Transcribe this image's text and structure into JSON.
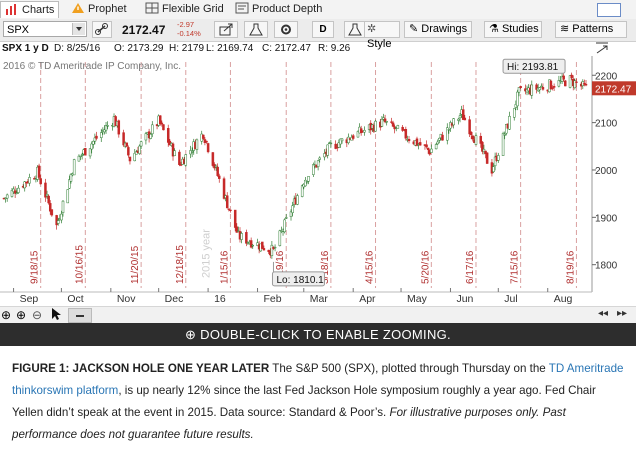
{
  "tabs": [
    {
      "label": "Charts",
      "active": true,
      "icon": "bar-chart-icon"
    },
    {
      "label": "Prophet",
      "active": false,
      "icon": "warning-triangle-icon"
    },
    {
      "label": "Flexible Grid",
      "active": false,
      "icon": "grid-icon"
    },
    {
      "label": "Product Depth",
      "active": false,
      "icon": "depth-icon"
    }
  ],
  "toolbar": {
    "symbol": "SPX",
    "price": "2172.47",
    "change": "-2.97",
    "change_pct": "-0.14%",
    "period": "D",
    "style_label": "Style",
    "drawings_label": "Drawings",
    "studies_label": "Studies",
    "patterns_label": "Patterns"
  },
  "info": {
    "symbol_period": "SPX 1 y D",
    "date": "D: 8/25/16",
    "open": "O: 2173.29",
    "high": "H: 2179",
    "low": "L: 2169.74",
    "close": "C: 2172.47",
    "range": "R: 9.26"
  },
  "chart_data": {
    "type": "candlestick",
    "copyright": "2016 © TD Ameritrade IP Company, Inc.",
    "watermark": "2015 year",
    "price_badge": "2172.47",
    "hi_label": "Hi: 2193.81",
    "lo_label": "Lo: 1810.1",
    "ylim": [
      1755,
      2228
    ],
    "y_ticks": [
      1800,
      1900,
      2000,
      2100,
      2200
    ],
    "month_labels": [
      "Sep",
      "Oct",
      "Nov",
      "Dec",
      "16",
      "Feb",
      "Mar",
      "Apr",
      "May",
      "Jun",
      "Jul",
      "Aug"
    ],
    "event_dates": [
      "9/18/15",
      "10/16/15",
      "11/20/15",
      "12/18/15",
      "1/15/16",
      "2/19/16",
      "3/18/16",
      "4/15/16",
      "5/20/16",
      "6/17/16",
      "7/15/16",
      "8/19/16"
    ],
    "anchors": [
      [
        "2015-08-26",
        1940
      ],
      [
        "2015-09-16",
        1995
      ],
      [
        "2015-09-28",
        1882
      ],
      [
        "2015-10-09",
        2015
      ],
      [
        "2015-11-03",
        2109
      ],
      [
        "2015-11-13",
        2023
      ],
      [
        "2015-12-01",
        2103
      ],
      [
        "2015-12-14",
        2012
      ],
      [
        "2015-12-29",
        2078
      ],
      [
        "2016-01-20",
        1860
      ],
      [
        "2016-02-11",
        1829
      ],
      [
        "2016-03-01",
        1978
      ],
      [
        "2016-03-18",
        2050
      ],
      [
        "2016-04-01",
        2073
      ],
      [
        "2016-04-20",
        2102
      ],
      [
        "2016-05-19",
        2040
      ],
      [
        "2016-06-08",
        2119
      ],
      [
        "2016-06-27",
        2001
      ],
      [
        "2016-07-14",
        2163
      ],
      [
        "2016-08-15",
        2190
      ],
      [
        "2016-08-25",
        2172
      ]
    ],
    "hi": {
      "date": "2016-08-15",
      "value": 2193.81
    },
    "lo": {
      "date": "2016-02-11",
      "value": 1810.1
    }
  },
  "zoom_bar": {
    "message": "DOUBLE-CLICK TO ENABLE ZOOMING."
  },
  "caption": {
    "title": "FIGURE 1: JACKSON HOLE ONE YEAR LATER",
    "text1": " The S&P 500 (SPX), plotted through Thursday on the ",
    "link": "TD Ameritrade thinkorswim platform",
    "text2": ", is up nearly 12% since the last Fed Jackson Hole symposium roughly a year ago. Fed Chair Yellen didn’t speak at the event in 2015. Data source: Standard & Poor’s. ",
    "italic": "For illustrative purposes only. Past performance does not guarantee future results."
  }
}
